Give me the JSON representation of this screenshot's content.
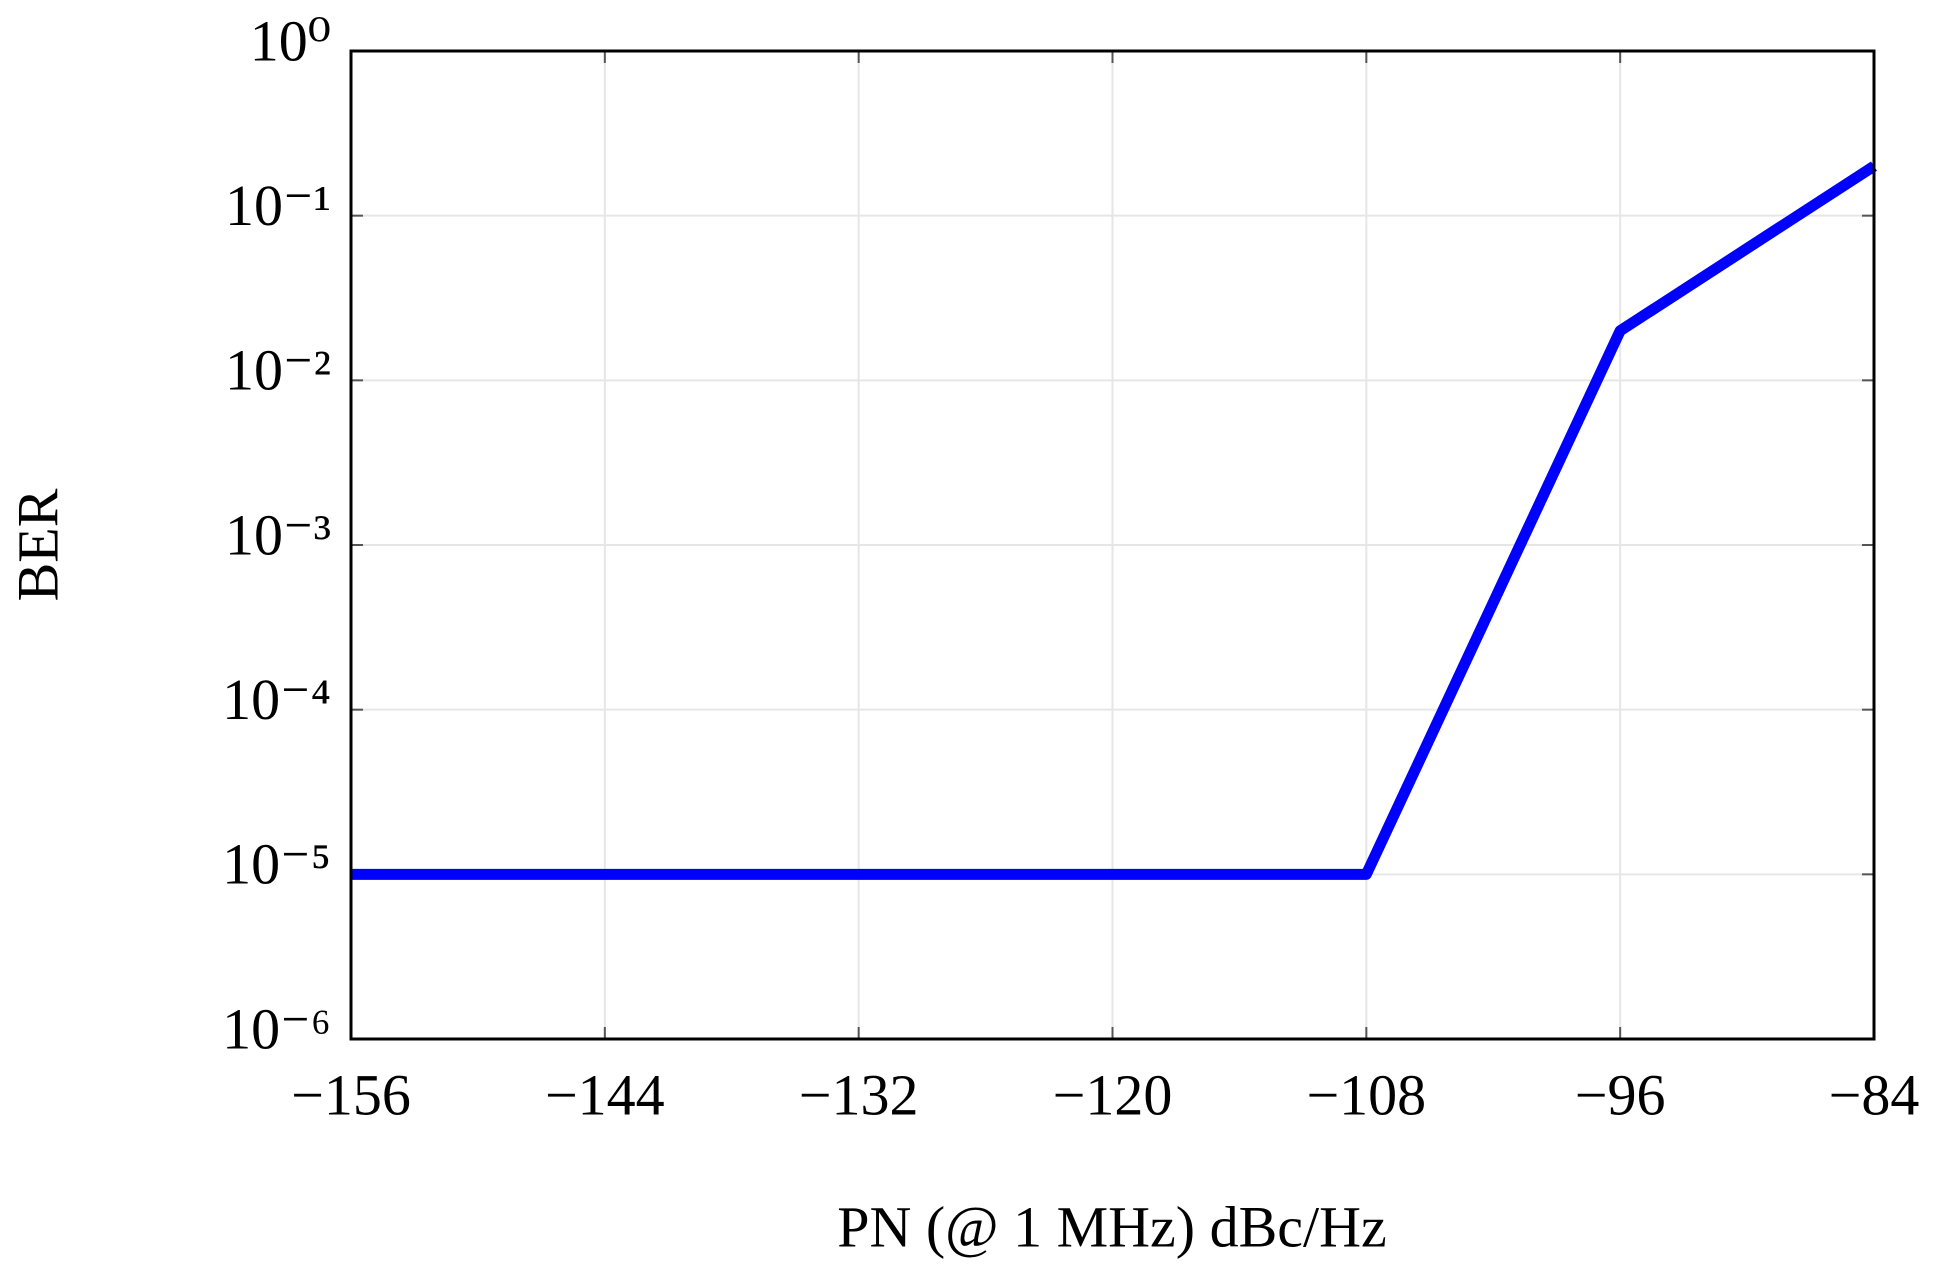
{
  "chart_data": {
    "type": "line",
    "x_label": "PN (@ 1 MHz) dBc/Hz",
    "y_label": "BER",
    "x": [
      -156,
      -108,
      -96,
      -84
    ],
    "series": [
      {
        "color": "#0000ff",
        "values": [
          1e-05,
          1e-05,
          0.02,
          0.2
        ]
      }
    ],
    "xlim": [
      -156,
      -84
    ],
    "xticks": [
      {
        "value": -156,
        "label": "−156"
      },
      {
        "value": -144,
        "label": "−144"
      },
      {
        "value": -132,
        "label": "−132"
      },
      {
        "value": -120,
        "label": "−120"
      },
      {
        "value": -108,
        "label": "−108"
      },
      {
        "value": -96,
        "label": "−96"
      },
      {
        "value": -84,
        "label": "−84"
      }
    ],
    "ylim": [
      1e-06,
      1
    ],
    "yticks": [
      {
        "value": 1e-06,
        "label": "10⁻⁶"
      },
      {
        "value": 1e-05,
        "label": "10⁻⁵"
      },
      {
        "value": 0.0001,
        "label": "10⁻⁴"
      },
      {
        "value": 0.001,
        "label": "10⁻³"
      },
      {
        "value": 0.01,
        "label": "10⁻²"
      },
      {
        "value": 0.1,
        "label": "10⁻¹"
      },
      {
        "value": 1,
        "label": "10⁰"
      }
    ],
    "y_log": true,
    "grid": true
  }
}
